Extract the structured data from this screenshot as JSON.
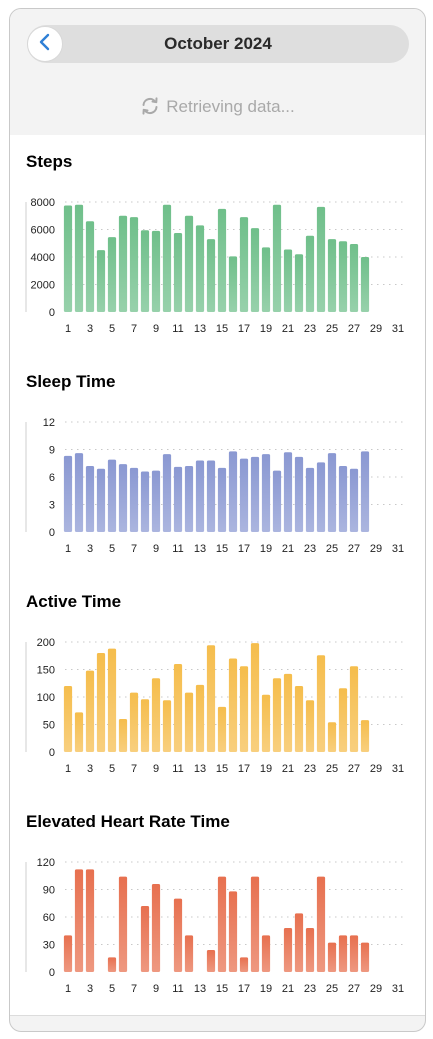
{
  "header": {
    "back_icon": "chevron-left-icon",
    "title": "October 2024",
    "status_icon": "refresh-icon",
    "status_text": "Retrieving data..."
  },
  "colors": {
    "steps": "#6fbf8a",
    "sleep": "#8a98d2",
    "active": "#f5bd4c",
    "heart": "#e7704f"
  },
  "x_ticks": [
    "1",
    "3",
    "5",
    "7",
    "9",
    "11",
    "13",
    "15",
    "17",
    "19",
    "21",
    "23",
    "25",
    "27",
    "29",
    "31"
  ],
  "chart_data": [
    {
      "type": "bar",
      "key": "steps",
      "title": "Steps",
      "color_key": "steps",
      "ylim": [
        0,
        8000
      ],
      "y_ticks": [
        "0",
        "2000",
        "4000",
        "6000",
        "8000"
      ],
      "x": [
        1,
        2,
        3,
        4,
        5,
        6,
        7,
        8,
        9,
        10,
        11,
        12,
        13,
        14,
        15,
        16,
        17,
        18,
        19,
        20,
        21,
        22,
        23,
        24,
        25,
        26,
        27,
        28
      ],
      "values": [
        7750,
        7800,
        6600,
        4500,
        5450,
        7000,
        6900,
        5950,
        5900,
        7800,
        5750,
        7000,
        6300,
        5300,
        7500,
        4050,
        6900,
        6100,
        4700,
        7800,
        4550,
        4200,
        5550,
        7650,
        5300,
        5150,
        4950,
        4000
      ]
    },
    {
      "type": "bar",
      "key": "sleep",
      "title": "Sleep Time",
      "color_key": "sleep",
      "ylim": [
        0,
        12
      ],
      "y_ticks": [
        "0",
        "3",
        "6",
        "9",
        "12"
      ],
      "x": [
        1,
        2,
        3,
        4,
        5,
        6,
        7,
        8,
        9,
        10,
        11,
        12,
        13,
        14,
        15,
        16,
        17,
        18,
        19,
        20,
        21,
        22,
        23,
        24,
        25,
        26,
        27,
        28
      ],
      "values": [
        8.3,
        8.6,
        7.2,
        6.9,
        7.9,
        7.4,
        7.0,
        6.6,
        6.7,
        8.5,
        7.1,
        7.2,
        7.8,
        7.8,
        7.0,
        8.8,
        8.0,
        8.2,
        8.5,
        6.7,
        8.7,
        8.2,
        7.0,
        7.6,
        8.6,
        7.2,
        6.9,
        8.8
      ]
    },
    {
      "type": "bar",
      "key": "active",
      "title": "Active Time",
      "color_key": "active",
      "ylim": [
        0,
        200
      ],
      "y_ticks": [
        "0",
        "50",
        "100",
        "150",
        "200"
      ],
      "x": [
        1,
        2,
        3,
        4,
        5,
        6,
        7,
        8,
        9,
        10,
        11,
        12,
        13,
        14,
        15,
        16,
        17,
        18,
        19,
        20,
        21,
        22,
        23,
        24,
        25,
        26,
        27,
        28
      ],
      "values": [
        120,
        72,
        148,
        180,
        188,
        60,
        108,
        96,
        134,
        94,
        160,
        108,
        122,
        194,
        82,
        170,
        156,
        198,
        104,
        134,
        142,
        120,
        94,
        176,
        54,
        116,
        156,
        58
      ]
    },
    {
      "type": "bar",
      "key": "heart",
      "title": "Elevated Heart Rate Time",
      "color_key": "heart",
      "ylim": [
        0,
        120
      ],
      "y_ticks": [
        "0",
        "30",
        "60",
        "90",
        "120"
      ],
      "x": [
        1,
        2,
        3,
        4,
        5,
        6,
        7,
        8,
        9,
        10,
        11,
        12,
        13,
        14,
        15,
        16,
        17,
        18,
        19,
        20,
        21,
        22,
        23,
        24,
        25,
        26,
        27,
        28
      ],
      "values": [
        40,
        112,
        112,
        0,
        16,
        104,
        0,
        72,
        96,
        0,
        80,
        40,
        0,
        24,
        104,
        88,
        16,
        104,
        40,
        0,
        48,
        64,
        48,
        104,
        32,
        40,
        40,
        32
      ]
    }
  ]
}
